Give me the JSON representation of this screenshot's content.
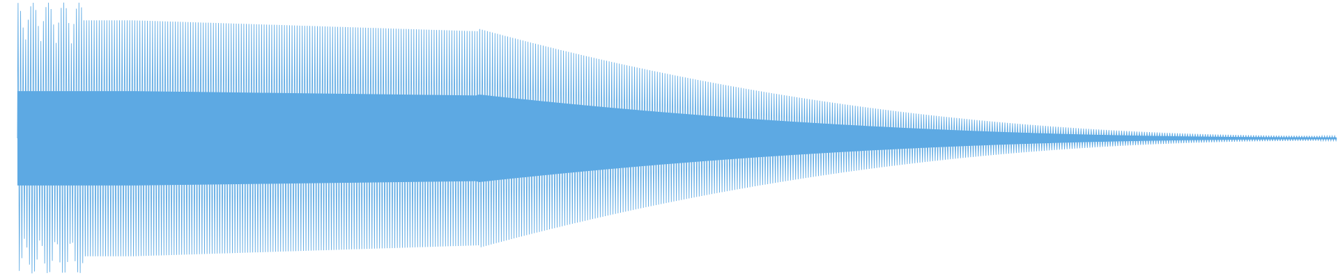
{
  "waveform": {
    "color": "#5DA9E3",
    "background": "#ffffff",
    "cycles": 520,
    "envelope": "decaying",
    "peak_level": 0.97,
    "end_level": 0.02
  }
}
